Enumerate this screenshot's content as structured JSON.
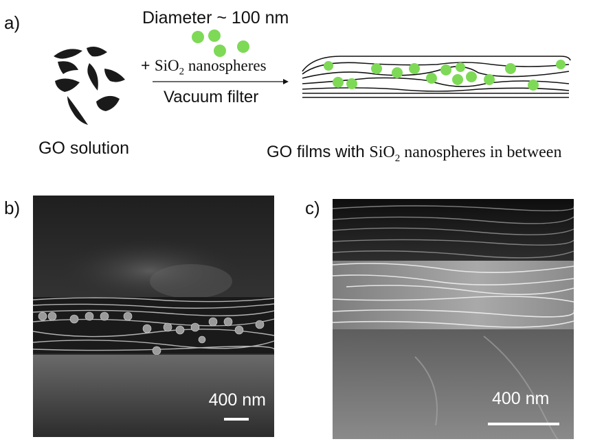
{
  "figure": {
    "panel_a": {
      "label": "a)",
      "diameter_text": "Diameter ~ 100 nm",
      "plus_prefix": "+ ",
      "sio2_si": "SiO",
      "sio2_sub": "2",
      "sio2_suffix": " nanospheres",
      "process_text": "Vacuum filter",
      "go_solution_label": "GO solution",
      "result_prefix": "GO films with ",
      "result_si": "SiO",
      "result_sub": "2",
      "result_suffix": " nanospheres in between"
    },
    "panel_b": {
      "label": "b)",
      "scale_text": "400 nm"
    },
    "panel_c": {
      "label": "c)",
      "scale_text": "400 nm"
    },
    "colors": {
      "nanosphere": "#7ed957",
      "go_flake": "#1a1a1a"
    }
  }
}
